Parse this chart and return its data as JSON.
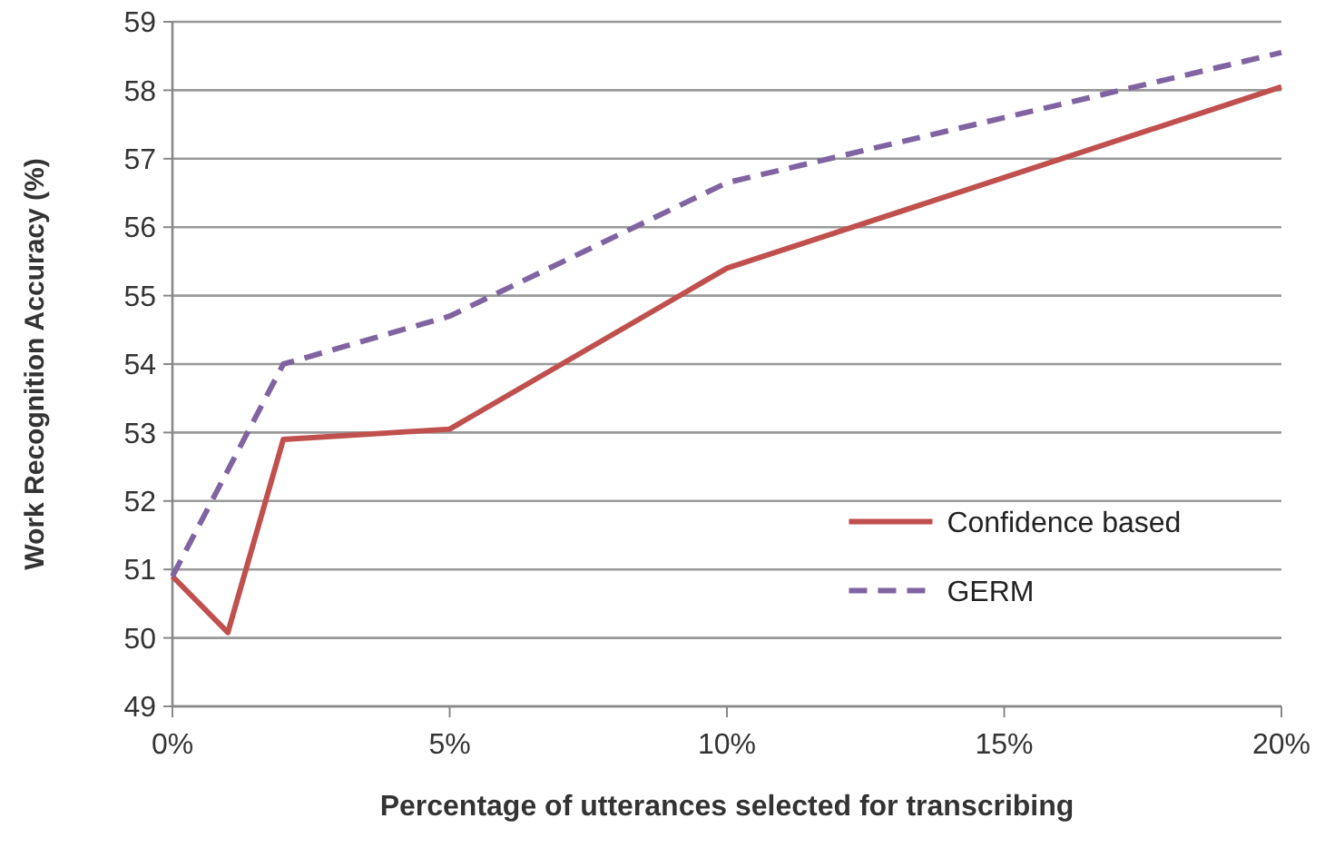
{
  "chart_data": {
    "type": "line",
    "xlabel": "Percentage of utterances selected for transcribing",
    "ylabel": "Work Recognition Accuracy (%)",
    "xlim": [
      0,
      20
    ],
    "xticks": [
      {
        "value": 0,
        "label": "0%"
      },
      {
        "value": 5,
        "label": "5%"
      },
      {
        "value": 10,
        "label": "10%"
      },
      {
        "value": 15,
        "label": "15%"
      },
      {
        "value": 20,
        "label": "20%"
      }
    ],
    "ylim": [
      49,
      59
    ],
    "yticks": [
      49,
      50,
      51,
      52,
      53,
      54,
      55,
      56,
      57,
      58,
      59
    ],
    "grid": "y",
    "legend": "right",
    "marker": "none",
    "series": [
      {
        "name": "Confidence based",
        "color": "#c0504d",
        "x": [
          0,
          1,
          2,
          5,
          10,
          20
        ],
        "values": [
          50.9,
          50.08,
          52.9,
          53.05,
          55.4,
          58.05
        ],
        "line_style": "solid"
      },
      {
        "name": "GERM",
        "color": "#8064a2",
        "x": [
          0,
          2,
          5,
          10,
          20
        ],
        "values": [
          50.9,
          54.0,
          54.7,
          56.65,
          58.55
        ],
        "line_style": "dashed"
      }
    ]
  }
}
